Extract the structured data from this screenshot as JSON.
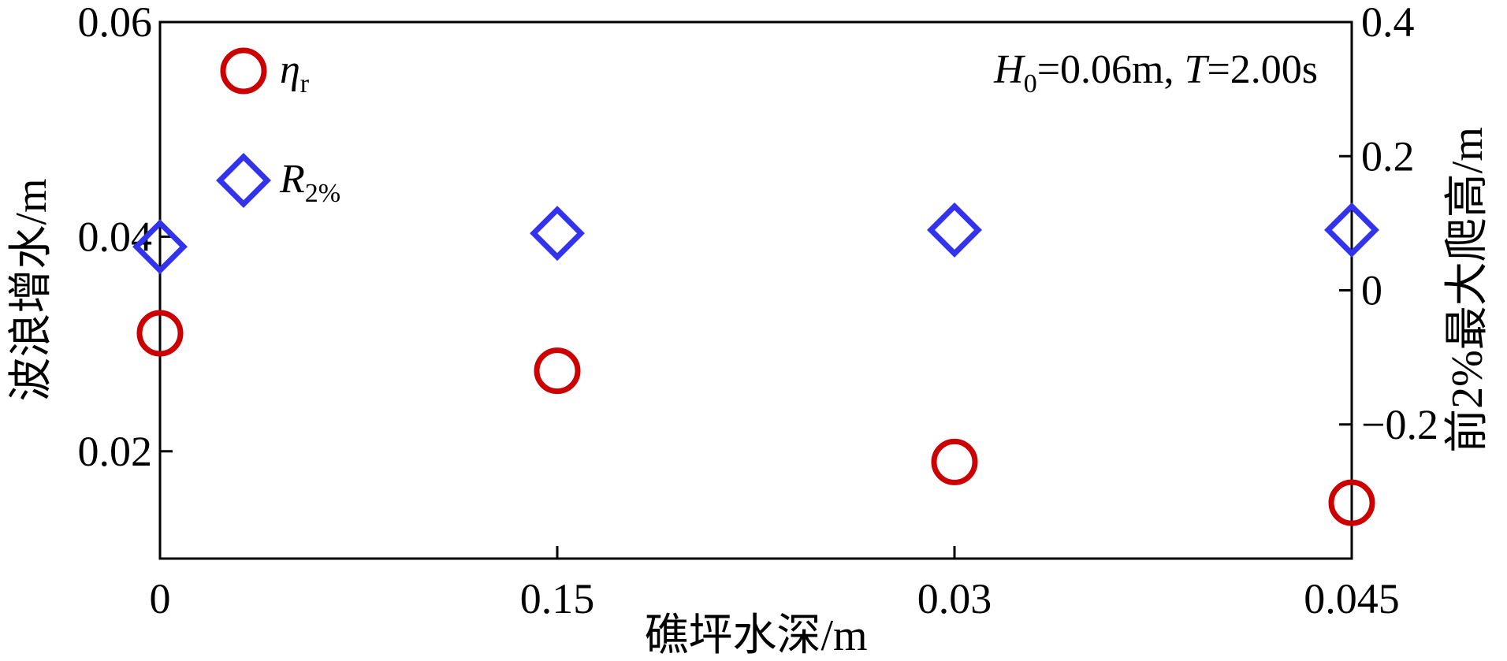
{
  "chart_data": {
    "type": "scatter",
    "categories": [
      "0",
      "0.15",
      "0.03",
      "0.045"
    ],
    "xlabel": "礁坪水深/m",
    "ylabel_left": "波浪增水/m",
    "ylabel_right": "前2%最大爬高/m",
    "ylim_left": [
      0.01,
      0.06
    ],
    "yticks_left": [
      "0.02",
      "0.04",
      "0.06"
    ],
    "ylim_right": [
      -0.4,
      0.4
    ],
    "yticks_right": [
      "−0.2",
      "0",
      "0.2",
      "0.4"
    ],
    "grid": false,
    "legend_position": "top-left",
    "annotation": {
      "H_var": "H",
      "H_sub": "0",
      "H_text": "=0.06m, ",
      "T_var": "T",
      "T_text": "=2.00s"
    },
    "series": [
      {
        "name_main": "η",
        "name_sub": "r",
        "axis": "left",
        "marker": "circle",
        "color": "#cc0000",
        "values": [
          0.031,
          0.0275,
          0.019,
          0.0152
        ]
      },
      {
        "name_main": "R",
        "name_sub": "2%",
        "axis": "right",
        "marker": "diamond",
        "color": "#3333ee",
        "values": [
          0.065,
          0.085,
          0.09,
          0.09
        ]
      }
    ]
  }
}
